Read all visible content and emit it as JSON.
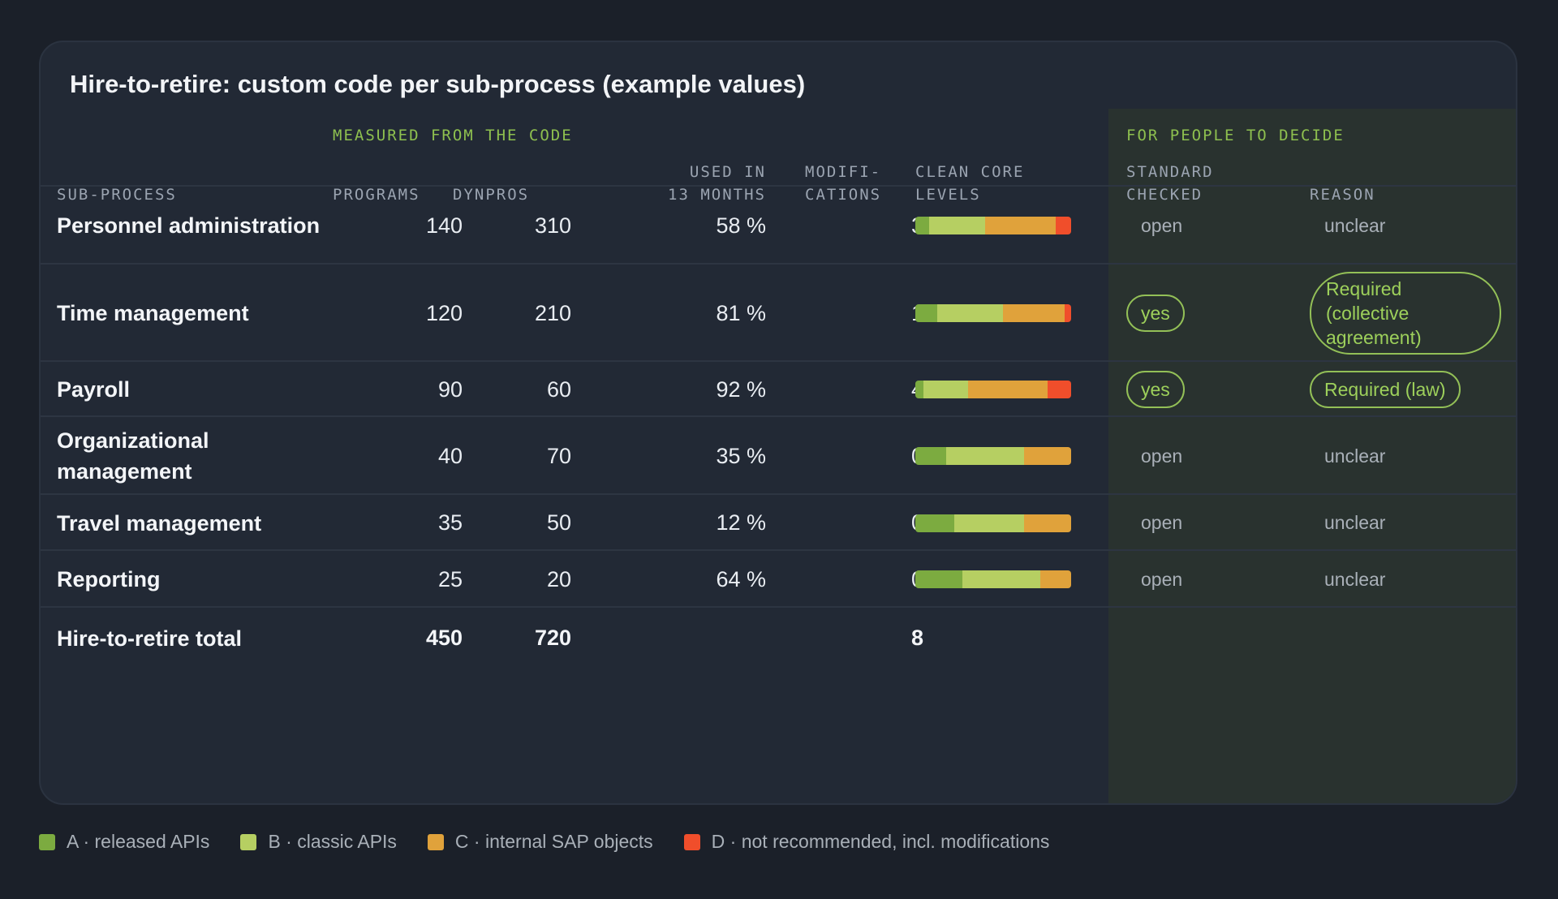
{
  "title": "Hire-to-retire: custom code per sub-process (example values)",
  "groups": {
    "measured": "MEASURED FROM THE CODE",
    "decide": "FOR PEOPLE TO DECIDE"
  },
  "columns": {
    "subprocess": "SUB-PROCESS",
    "programs": "PROGRAMS",
    "dynpros": "DYNPROS",
    "used_line1": "USED IN",
    "used_line2": "13 MONTHS",
    "mods_line1": "MODIFI-",
    "mods_line2": "CATIONS",
    "levels_line1": "CLEAN CORE",
    "levels_line2": "LEVELS",
    "checked_line1": "STANDARD",
    "checked_line2": "CHECKED",
    "reason": "REASON"
  },
  "level_colors": {
    "A": "#7cab40",
    "B": "#b6cf62",
    "C": "#e0a23b",
    "D": "#f04e2b"
  },
  "rows": [
    {
      "name": "Personnel administration",
      "programs": "140",
      "dynpros": "310",
      "used": "58 %",
      "modifications": "3",
      "levels": {
        "A": 0.09,
        "B": 0.36,
        "C": 0.45,
        "D": 0.1
      },
      "checked": "open",
      "checked_style": "muted",
      "reason": "unclear",
      "reason_style": "muted"
    },
    {
      "name": "Time management",
      "programs": "120",
      "dynpros": "210",
      "used": "81 %",
      "modifications": "1",
      "levels": {
        "A": 0.14,
        "B": 0.42,
        "C": 0.4,
        "D": 0.04
      },
      "checked": "yes",
      "checked_style": "pill",
      "reason": "Required (collective agreement)",
      "reason_style": "pill-multi"
    },
    {
      "name": "Payroll",
      "programs": "90",
      "dynpros": "60",
      "used": "92 %",
      "modifications": "4",
      "levels": {
        "A": 0.05,
        "B": 0.29,
        "C": 0.51,
        "D": 0.15
      },
      "checked": "yes",
      "checked_style": "pill",
      "reason": "Required (law)",
      "reason_style": "pill"
    },
    {
      "name": "Organizational management",
      "programs": "40",
      "dynpros": "70",
      "used": "35 %",
      "modifications": "0",
      "levels": {
        "A": 0.2,
        "B": 0.5,
        "C": 0.3,
        "D": 0
      },
      "checked": "open",
      "checked_style": "muted",
      "reason": "unclear",
      "reason_style": "muted"
    },
    {
      "name": "Travel management",
      "programs": "35",
      "dynpros": "50",
      "used": "12 %",
      "modifications": "0",
      "levels": {
        "A": 0.25,
        "B": 0.45,
        "C": 0.3,
        "D": 0
      },
      "checked": "open",
      "checked_style": "muted",
      "reason": "unclear",
      "reason_style": "muted"
    },
    {
      "name": "Reporting",
      "programs": "25",
      "dynpros": "20",
      "used": "64 %",
      "modifications": "0",
      "levels": {
        "A": 0.3,
        "B": 0.5,
        "C": 0.2,
        "D": 0
      },
      "checked": "open",
      "checked_style": "muted",
      "reason": "unclear",
      "reason_style": "muted"
    }
  ],
  "total": {
    "name": "Hire-to-retire total",
    "programs": "450",
    "dynpros": "720",
    "modifications": "8"
  },
  "legend": [
    {
      "key": "A",
      "label": "A · released APIs"
    },
    {
      "key": "B",
      "label": "B · classic APIs"
    },
    {
      "key": "C",
      "label": "C · internal SAP objects"
    },
    {
      "key": "D",
      "label": "D · not recommended, incl. modifications"
    }
  ]
}
